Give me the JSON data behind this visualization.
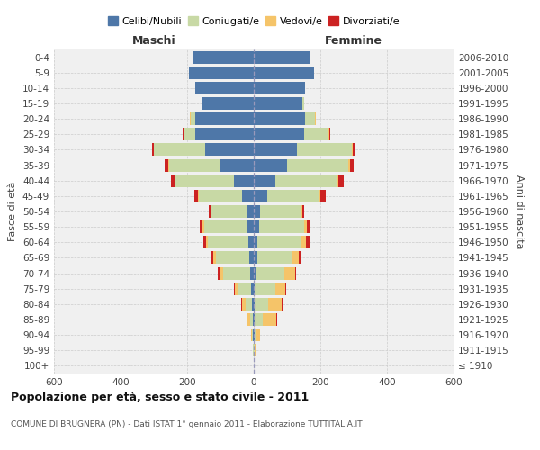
{
  "age_groups": [
    "100+",
    "95-99",
    "90-94",
    "85-89",
    "80-84",
    "75-79",
    "70-74",
    "65-69",
    "60-64",
    "55-59",
    "50-54",
    "45-49",
    "40-44",
    "35-39",
    "30-34",
    "25-29",
    "20-24",
    "15-19",
    "10-14",
    "5-9",
    "0-4"
  ],
  "birth_years": [
    "≤ 1910",
    "1911-1915",
    "1916-1920",
    "1921-1925",
    "1926-1930",
    "1931-1935",
    "1936-1940",
    "1941-1945",
    "1946-1950",
    "1951-1955",
    "1956-1960",
    "1961-1965",
    "1966-1970",
    "1971-1975",
    "1976-1980",
    "1981-1985",
    "1986-1990",
    "1991-1995",
    "1996-2000",
    "2001-2005",
    "2006-2010"
  ],
  "maschi_celibi": [
    0,
    1,
    2,
    3,
    5,
    8,
    12,
    14,
    17,
    18,
    22,
    35,
    60,
    100,
    145,
    175,
    175,
    155,
    175,
    195,
    185
  ],
  "maschi_coniugati": [
    0,
    1,
    3,
    7,
    20,
    40,
    80,
    100,
    120,
    130,
    105,
    130,
    175,
    155,
    155,
    35,
    15,
    2,
    0,
    0,
    0
  ],
  "maschi_vedovi": [
    0,
    0,
    2,
    8,
    10,
    10,
    10,
    8,
    5,
    5,
    3,
    2,
    2,
    2,
    1,
    1,
    1,
    0,
    0,
    0,
    0
  ],
  "maschi_divorziati": [
    0,
    0,
    1,
    1,
    2,
    2,
    5,
    5,
    10,
    10,
    5,
    12,
    12,
    10,
    5,
    2,
    1,
    0,
    0,
    0,
    0
  ],
  "femmine_celibi": [
    0,
    1,
    2,
    3,
    3,
    4,
    8,
    10,
    12,
    15,
    20,
    40,
    65,
    100,
    130,
    150,
    155,
    145,
    155,
    180,
    170
  ],
  "femmine_coniugati": [
    0,
    2,
    5,
    25,
    40,
    60,
    85,
    105,
    130,
    135,
    120,
    155,
    185,
    185,
    165,
    75,
    30,
    5,
    0,
    0,
    0
  ],
  "femmine_vedovi": [
    0,
    3,
    12,
    40,
    40,
    30,
    30,
    20,
    15,
    10,
    5,
    5,
    5,
    5,
    2,
    2,
    1,
    0,
    0,
    0,
    0
  ],
  "femmine_divorziati": [
    0,
    0,
    1,
    2,
    3,
    3,
    5,
    5,
    10,
    10,
    5,
    15,
    15,
    10,
    5,
    3,
    1,
    0,
    0,
    0,
    0
  ],
  "color_celibi": "#4e77a8",
  "color_coniugati": "#c8d9a5",
  "color_vedovi": "#f5c469",
  "color_divorziati": "#cc2222",
  "title": "Popolazione per età, sesso e stato civile - 2011",
  "subtitle": "COMUNE DI BRUGNERA (PN) - Dati ISTAT 1° gennaio 2011 - Elaborazione TUTTITALIA.IT",
  "xlabel_maschi": "Maschi",
  "xlabel_femmine": "Femmine",
  "ylabel": "Fasce di età",
  "ylabel_right": "Anni di nascita",
  "legend_labels": [
    "Celibi/Nubili",
    "Coniugati/e",
    "Vedovi/e",
    "Divorziati/e"
  ],
  "xlim": 600,
  "bg_color": "#ffffff",
  "plot_bg_color": "#f0f0f0",
  "grid_color": "#cccccc"
}
